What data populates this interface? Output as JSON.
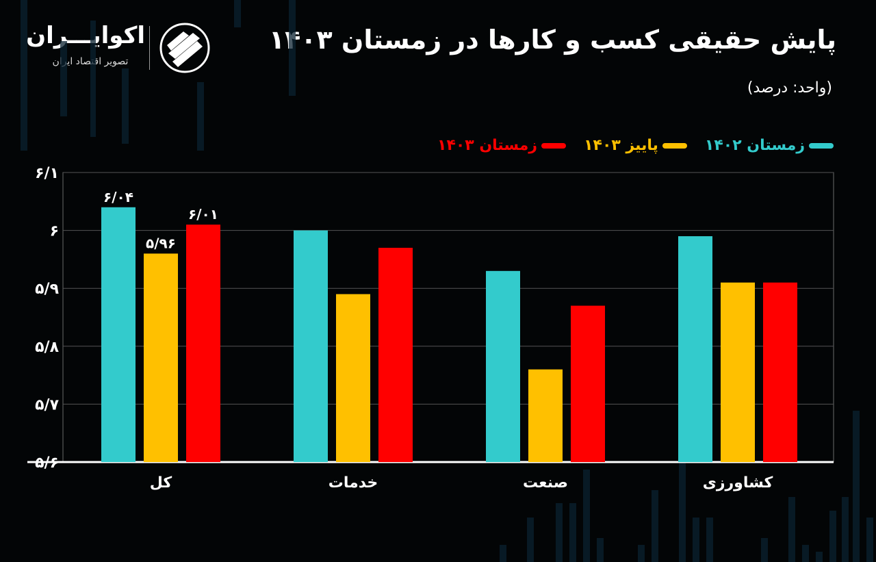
{
  "header": {
    "title": "پایش حقیقی کسب و کارها در زمستان ۱۴۰۳",
    "unit": "(واحد: درصد)"
  },
  "logo": {
    "name": "اکوایـــران",
    "subtitle": "تصویر اقتصاد ایران"
  },
  "colors": {
    "background": "#030506",
    "series": [
      "#33cbcc",
      "#ffc000",
      "#ff0000"
    ]
  },
  "chart_data": {
    "type": "bar",
    "categories": [
      "کشاورزی",
      "صنعت",
      "خدمات",
      "کل"
    ],
    "series": [
      {
        "name": "زمستان ۱۴۰۲",
        "values": [
          5.99,
          5.93,
          6.0,
          6.04
        ]
      },
      {
        "name": "پاییز ۱۴۰۳",
        "values": [
          5.91,
          5.76,
          5.89,
          5.96
        ]
      },
      {
        "name": "زمستان ۱۴۰۳",
        "values": [
          5.91,
          5.87,
          5.97,
          6.01
        ]
      }
    ],
    "data_labels": [
      {
        "category": "کل",
        "series": "زمستان ۱۴۰۲",
        "text": "۶/۰۴"
      },
      {
        "category": "کل",
        "series": "پاییز ۱۴۰۳",
        "text": "۵/۹۶"
      },
      {
        "category": "کل",
        "series": "زمستان ۱۴۰۳",
        "text": "۶/۰۱"
      }
    ],
    "y_ticks": [
      {
        "value": 5.6,
        "label": "۵/۶"
      },
      {
        "value": 5.7,
        "label": "۵/۷"
      },
      {
        "value": 5.8,
        "label": "۵/۸"
      },
      {
        "value": 5.9,
        "label": "۵/۹"
      },
      {
        "value": 6.0,
        "label": "۶"
      },
      {
        "value": 6.1,
        "label": "۶/۱"
      }
    ],
    "ylim": [
      5.6,
      6.1
    ],
    "title": "پایش حقیقی کسب و کارها در زمستان ۱۴۰۳",
    "ylabel": "(واحد: درصد)",
    "xlabel": "",
    "grid": true,
    "legend_position": "top-right"
  }
}
